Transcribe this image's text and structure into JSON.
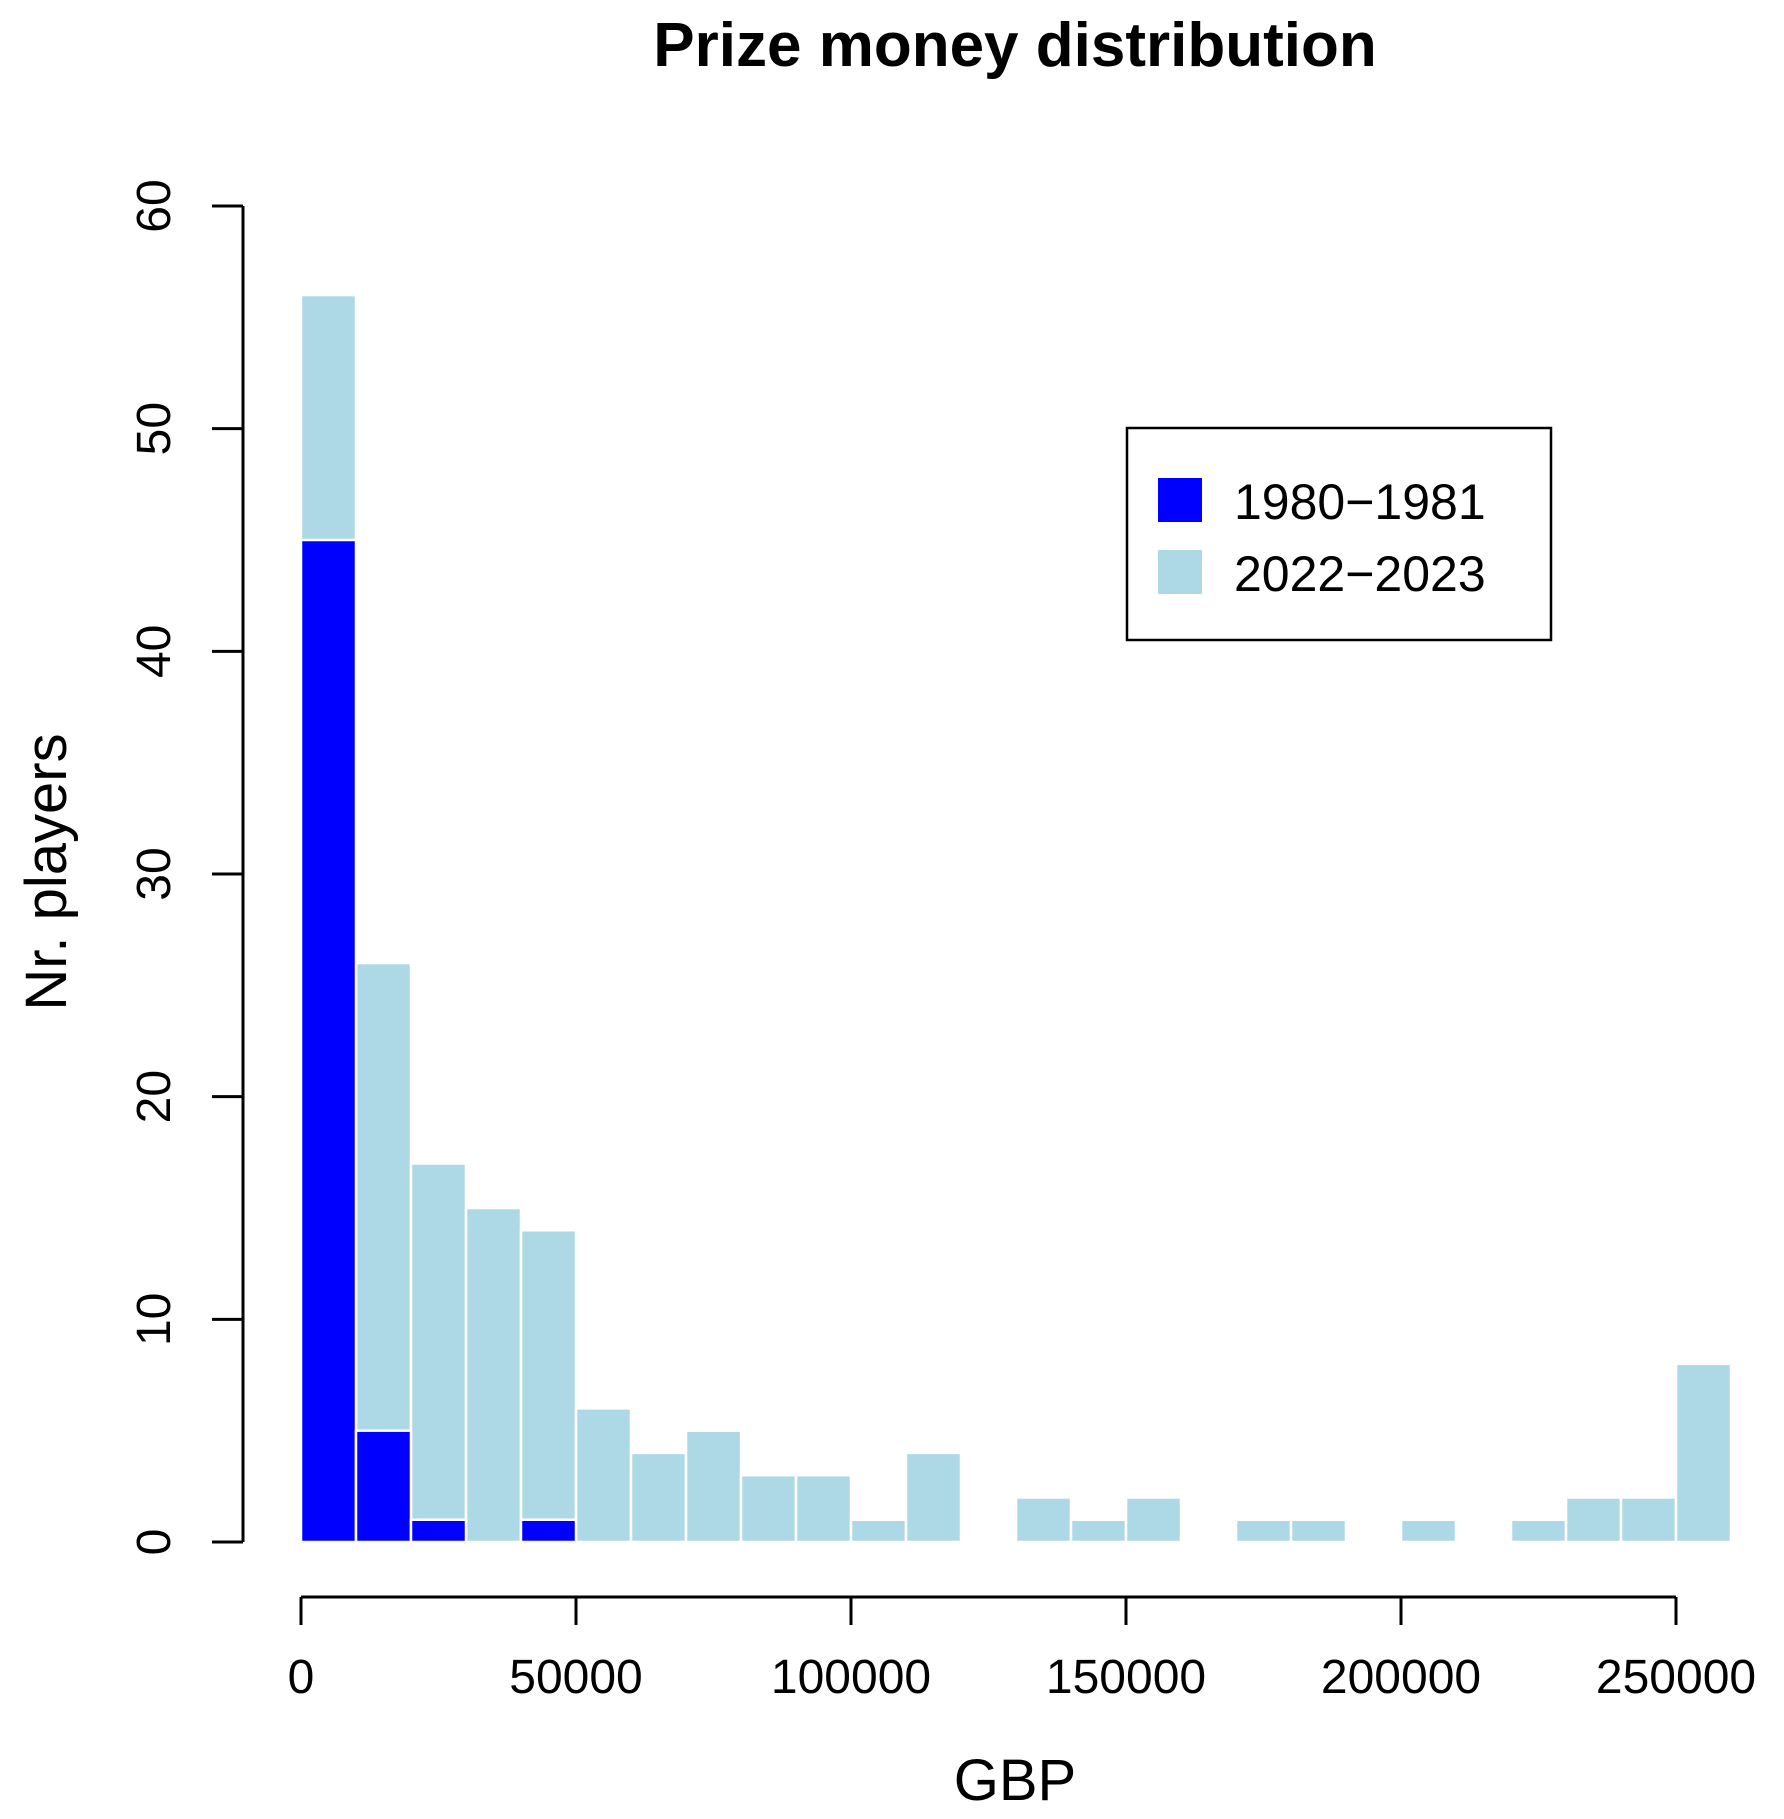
{
  "chart_data": {
    "type": "bar",
    "title": "Prize money distribution",
    "xlabel": "GBP",
    "ylabel": "Nr. players",
    "xlim": [
      0,
      260000
    ],
    "ylim": [
      0,
      60
    ],
    "bin_width": 10000,
    "x_ticks": [
      0,
      50000,
      100000,
      150000,
      200000,
      250000
    ],
    "y_ticks": [
      0,
      10,
      20,
      30,
      40,
      50,
      60
    ],
    "legend_position": "top-right",
    "grid": false,
    "series": [
      {
        "name": "2022−2023",
        "color": "#add8e6",
        "bins": [
          {
            "x0": 0,
            "x1": 10000,
            "count": 56
          },
          {
            "x0": 10000,
            "x1": 20000,
            "count": 26
          },
          {
            "x0": 20000,
            "x1": 30000,
            "count": 17
          },
          {
            "x0": 30000,
            "x1": 40000,
            "count": 15
          },
          {
            "x0": 40000,
            "x1": 50000,
            "count": 14
          },
          {
            "x0": 50000,
            "x1": 60000,
            "count": 6
          },
          {
            "x0": 60000,
            "x1": 70000,
            "count": 4
          },
          {
            "x0": 70000,
            "x1": 80000,
            "count": 5
          },
          {
            "x0": 80000,
            "x1": 90000,
            "count": 3
          },
          {
            "x0": 90000,
            "x1": 100000,
            "count": 3
          },
          {
            "x0": 100000,
            "x1": 110000,
            "count": 1
          },
          {
            "x0": 110000,
            "x1": 120000,
            "count": 4
          },
          {
            "x0": 120000,
            "x1": 130000,
            "count": 0
          },
          {
            "x0": 130000,
            "x1": 140000,
            "count": 2
          },
          {
            "x0": 140000,
            "x1": 150000,
            "count": 1
          },
          {
            "x0": 150000,
            "x1": 160000,
            "count": 2
          },
          {
            "x0": 160000,
            "x1": 170000,
            "count": 0
          },
          {
            "x0": 170000,
            "x1": 180000,
            "count": 1
          },
          {
            "x0": 180000,
            "x1": 190000,
            "count": 1
          },
          {
            "x0": 190000,
            "x1": 200000,
            "count": 0
          },
          {
            "x0": 200000,
            "x1": 210000,
            "count": 1
          },
          {
            "x0": 210000,
            "x1": 220000,
            "count": 0
          },
          {
            "x0": 220000,
            "x1": 230000,
            "count": 1
          },
          {
            "x0": 230000,
            "x1": 240000,
            "count": 2
          },
          {
            "x0": 240000,
            "x1": 250000,
            "count": 2
          },
          {
            "x0": 250000,
            "x1": 260000,
            "count": 8
          }
        ]
      },
      {
        "name": "1980−1981",
        "color": "#0000ff",
        "bins": [
          {
            "x0": 0,
            "x1": 10000,
            "count": 45
          },
          {
            "x0": 10000,
            "x1": 20000,
            "count": 5
          },
          {
            "x0": 20000,
            "x1": 30000,
            "count": 1
          },
          {
            "x0": 30000,
            "x1": 40000,
            "count": 0
          },
          {
            "x0": 40000,
            "x1": 50000,
            "count": 1
          }
        ]
      }
    ],
    "legend": [
      {
        "label": "1980−1981",
        "color": "#0000ff"
      },
      {
        "label": "2022−2023",
        "color": "#add8e6"
      }
    ]
  }
}
